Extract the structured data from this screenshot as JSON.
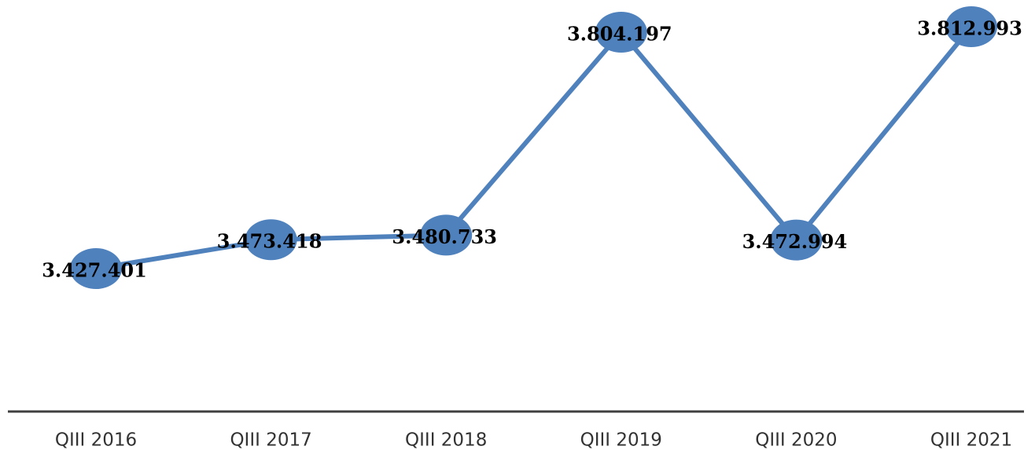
{
  "chart_data": {
    "type": "line",
    "categories": [
      "QIII 2016",
      "QIII 2017",
      "QIII 2018",
      "QIII 2019",
      "QIII 2020",
      "QIII 2021"
    ],
    "values": [
      3427401,
      3473418,
      3480733,
      3804197,
      3472994,
      3812993
    ],
    "value_labels": [
      "3.427.401",
      "3.473.418",
      "3.480.733",
      "3.804.197",
      "3.472.994",
      "3.812.993"
    ],
    "color": "#4f81bd"
  }
}
